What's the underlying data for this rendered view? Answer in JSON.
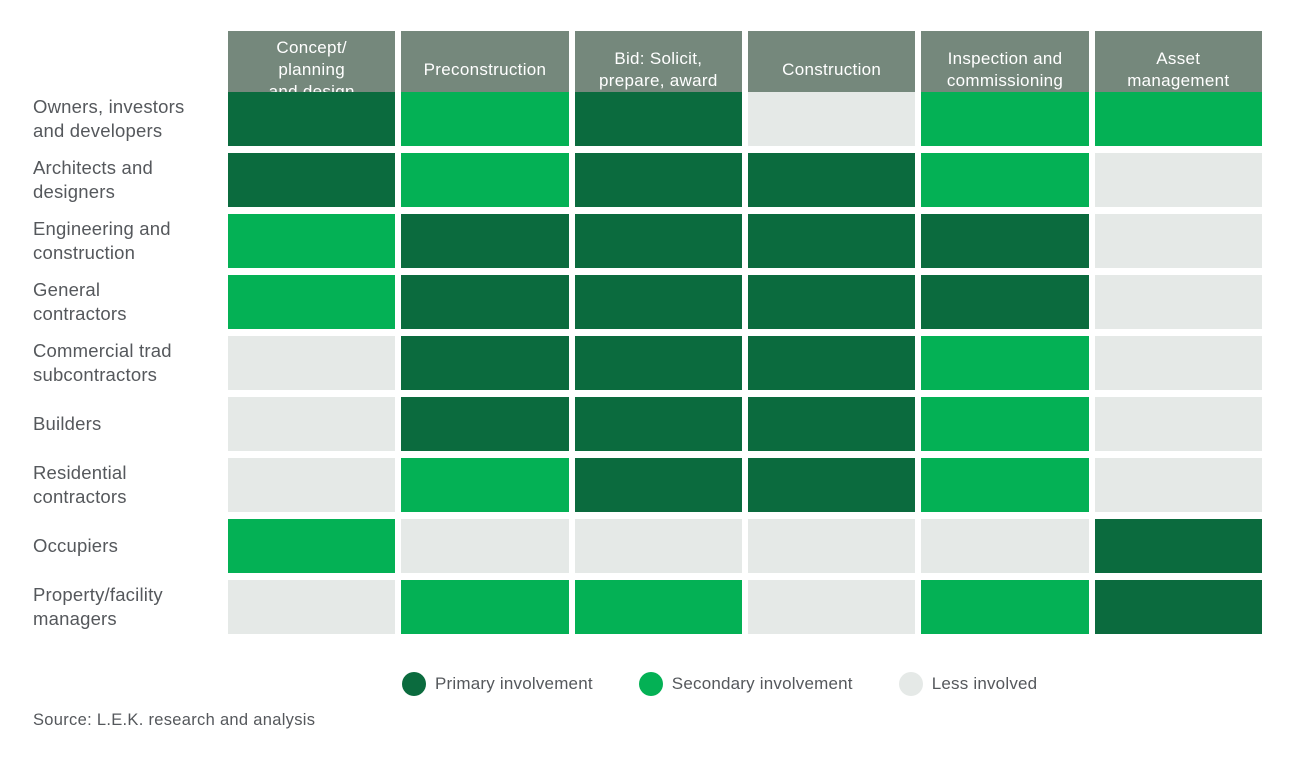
{
  "chart_data": {
    "type": "heatmap",
    "title": "",
    "columns": [
      "Concept/\nplanning\nand design",
      "Preconstruction",
      "Bid: Solicit,\nprepare, award",
      "Construction",
      "Inspection and\ncommissioning",
      "Asset\nmanagement"
    ],
    "rows": [
      "Owners, investors\nand developers",
      "Architects and\ndesigners",
      "Engineering and\nconstruction",
      "General\ncontractors",
      "Commercial trad\nsubcontractors",
      "Builders",
      "Residential\ncontractors",
      "Occupiers",
      "Property/facility\nmanagers"
    ],
    "values": [
      [
        "primary",
        "secondary",
        "primary",
        "less",
        "secondary",
        "secondary"
      ],
      [
        "primary",
        "secondary",
        "primary",
        "primary",
        "secondary",
        "less"
      ],
      [
        "secondary",
        "primary",
        "primary",
        "primary",
        "primary",
        "less"
      ],
      [
        "secondary",
        "primary",
        "primary",
        "primary",
        "primary",
        "less"
      ],
      [
        "less",
        "primary",
        "primary",
        "primary",
        "secondary",
        "less"
      ],
      [
        "less",
        "primary",
        "primary",
        "primary",
        "secondary",
        "less"
      ],
      [
        "less",
        "secondary",
        "primary",
        "primary",
        "secondary",
        "less"
      ],
      [
        "secondary",
        "less",
        "less",
        "less",
        "less",
        "primary"
      ],
      [
        "less",
        "secondary",
        "secondary",
        "less",
        "secondary",
        "primary"
      ]
    ],
    "legend": [
      {
        "key": "primary",
        "label": "Primary involvement"
      },
      {
        "key": "secondary",
        "label": "Secondary involvement"
      },
      {
        "key": "less",
        "label": "Less involved"
      }
    ],
    "legend_position": "bottom",
    "grid": false
  },
  "colors": {
    "primary": "#0b6b3e",
    "secondary": "#04b155",
    "less": "#e5e9e7",
    "header_bg": "#75887c",
    "header_text": "#ffffff",
    "label_text": "#55585c"
  },
  "source": "Source: L.E.K. research and analysis"
}
